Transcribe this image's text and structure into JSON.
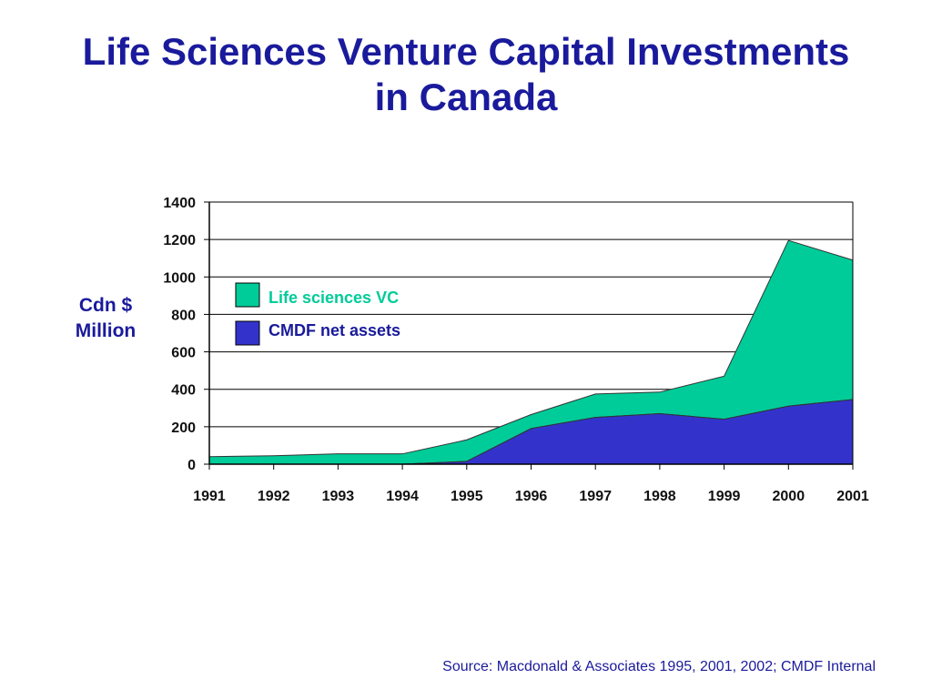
{
  "title": {
    "line1": "Life Sciences Venture Capital Investments",
    "line2": "in Canada"
  },
  "source": "Source: Macdonald & Associates 1995, 2001, 2002; CMDF Internal",
  "colors": {
    "title": "#1a1a9c",
    "life_sciences_vc": "#00cc99",
    "cmdf_net_assets": "#3333cc",
    "legend_vc_text": "#00cc99",
    "legend_cmdf_text": "#1a1a9c"
  },
  "chart_data": {
    "type": "area",
    "stacked": true,
    "title": "Life Sciences Venture Capital Investments in Canada",
    "xlabel": "",
    "ylabel_lines": [
      "Cdn $",
      "Million"
    ],
    "x": [
      1991,
      1992,
      1993,
      1994,
      1995,
      1996,
      1997,
      1998,
      1999,
      2000,
      2001
    ],
    "x_tick_labels": [
      "1991",
      "1992",
      "1993",
      "1994",
      "1995",
      "1996",
      "1997",
      "1998",
      "1999",
      "2000",
      "2001"
    ],
    "ylim": [
      0,
      1400
    ],
    "y_ticks": [
      0,
      200,
      400,
      600,
      800,
      1000,
      1200,
      1400
    ],
    "y_tick_labels": [
      "0",
      "200",
      "400",
      "600",
      "800",
      "1000",
      "1200",
      "1400"
    ],
    "grid": "horizontal",
    "legend_position": "top-left inside plot",
    "series": [
      {
        "name": "CMDF net assets",
        "values": [
          0,
          0,
          0,
          0,
          15,
          190,
          250,
          270,
          240,
          310,
          345
        ]
      },
      {
        "name": "Life sciences VC",
        "values": [
          40,
          45,
          55,
          55,
          115,
          75,
          125,
          115,
          230,
          885,
          745
        ]
      }
    ]
  }
}
